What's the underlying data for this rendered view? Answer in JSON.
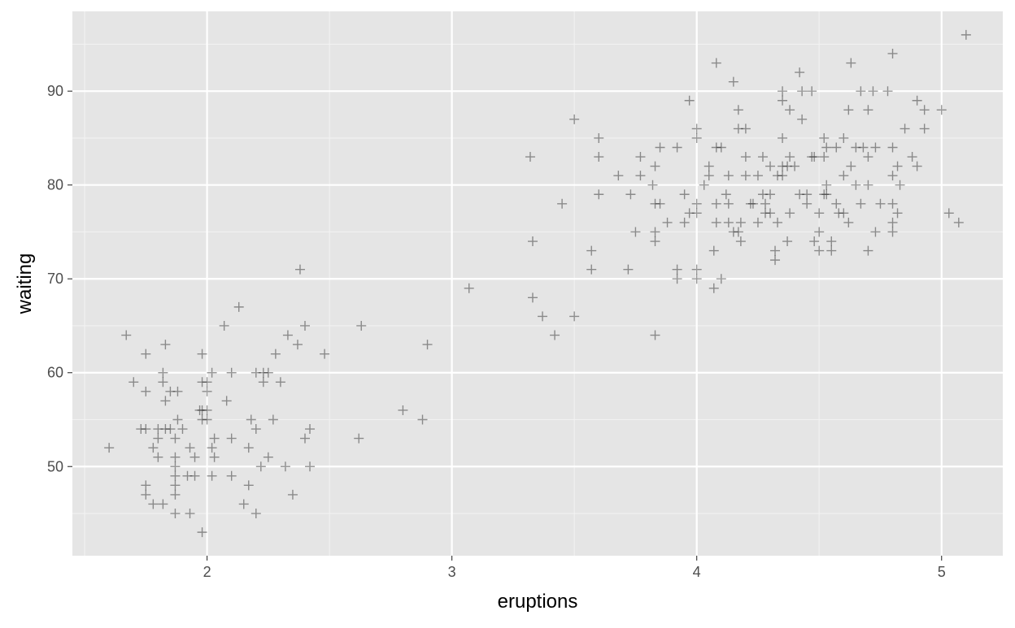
{
  "chart_data": {
    "type": "scatter",
    "title": "",
    "xlabel": "eruptions",
    "ylabel": "waiting",
    "xlim": [
      1.45,
      5.25
    ],
    "ylim": [
      40.5,
      98.5
    ],
    "x_ticks": [
      2,
      3,
      4,
      5
    ],
    "y_ticks": [
      50,
      60,
      70,
      80,
      90
    ],
    "x_tick_labels": [
      "2",
      "3",
      "4",
      "5"
    ],
    "y_tick_labels": [
      "50",
      "60",
      "70",
      "80",
      "90"
    ],
    "grid": true,
    "background": "#E5E5E5",
    "grid_major_color": "#FFFFFF",
    "grid_minor_color": "#F2F2F2",
    "marker": "plus",
    "marker_color": "#000000",
    "marker_alpha": 0.4,
    "points": [
      [
        1.6,
        52
      ],
      [
        1.67,
        64
      ],
      [
        1.7,
        59
      ],
      [
        1.73,
        54
      ],
      [
        1.75,
        54
      ],
      [
        1.75,
        62
      ],
      [
        1.75,
        58
      ],
      [
        1.75,
        48
      ],
      [
        1.75,
        47
      ],
      [
        1.78,
        52
      ],
      [
        1.78,
        46
      ],
      [
        1.8,
        51
      ],
      [
        1.8,
        53
      ],
      [
        1.8,
        54
      ],
      [
        1.82,
        60
      ],
      [
        1.82,
        59
      ],
      [
        1.82,
        46
      ],
      [
        1.83,
        54
      ],
      [
        1.83,
        63
      ],
      [
        1.83,
        57
      ],
      [
        1.85,
        58
      ],
      [
        1.85,
        54
      ],
      [
        1.87,
        47
      ],
      [
        1.87,
        45
      ],
      [
        1.87,
        50
      ],
      [
        1.87,
        49
      ],
      [
        1.87,
        48
      ],
      [
        1.87,
        51
      ],
      [
        1.87,
        53
      ],
      [
        1.88,
        58
      ],
      [
        1.88,
        55
      ],
      [
        1.9,
        54
      ],
      [
        1.92,
        49
      ],
      [
        1.93,
        45
      ],
      [
        1.93,
        52
      ],
      [
        1.95,
        49
      ],
      [
        1.95,
        51
      ],
      [
        1.97,
        56
      ],
      [
        1.98,
        55
      ],
      [
        1.98,
        62
      ],
      [
        1.98,
        59
      ],
      [
        1.98,
        56
      ],
      [
        1.98,
        43
      ],
      [
        2.0,
        56
      ],
      [
        2.0,
        59
      ],
      [
        2.0,
        55
      ],
      [
        2.0,
        58
      ],
      [
        2.02,
        60
      ],
      [
        2.02,
        49
      ],
      [
        2.02,
        52
      ],
      [
        2.03,
        51
      ],
      [
        2.03,
        53
      ],
      [
        2.07,
        65
      ],
      [
        2.08,
        57
      ],
      [
        2.1,
        49
      ],
      [
        2.1,
        60
      ],
      [
        2.1,
        53
      ],
      [
        2.13,
        67
      ],
      [
        2.15,
        46
      ],
      [
        2.17,
        48
      ],
      [
        2.17,
        52
      ],
      [
        2.18,
        55
      ],
      [
        2.2,
        54
      ],
      [
        2.2,
        60
      ],
      [
        2.2,
        45
      ],
      [
        2.22,
        50
      ],
      [
        2.23,
        59
      ],
      [
        2.23,
        60
      ],
      [
        2.25,
        60
      ],
      [
        2.25,
        51
      ],
      [
        2.27,
        55
      ],
      [
        2.28,
        62
      ],
      [
        2.3,
        59
      ],
      [
        2.32,
        50
      ],
      [
        2.33,
        64
      ],
      [
        2.35,
        47
      ],
      [
        2.37,
        63
      ],
      [
        2.38,
        71
      ],
      [
        2.4,
        65
      ],
      [
        2.4,
        53
      ],
      [
        2.42,
        50
      ],
      [
        2.42,
        54
      ],
      [
        2.48,
        62
      ],
      [
        2.62,
        53
      ],
      [
        2.63,
        65
      ],
      [
        2.8,
        56
      ],
      [
        2.88,
        55
      ],
      [
        2.9,
        63
      ],
      [
        3.07,
        69
      ],
      [
        3.32,
        83
      ],
      [
        3.33,
        68
      ],
      [
        3.33,
        74
      ],
      [
        3.37,
        66
      ],
      [
        3.42,
        64
      ],
      [
        3.45,
        78
      ],
      [
        3.5,
        87
      ],
      [
        3.5,
        66
      ],
      [
        3.57,
        73
      ],
      [
        3.57,
        71
      ],
      [
        3.6,
        83
      ],
      [
        3.6,
        85
      ],
      [
        3.6,
        79
      ],
      [
        3.68,
        81
      ],
      [
        3.72,
        71
      ],
      [
        3.73,
        79
      ],
      [
        3.75,
        75
      ],
      [
        3.77,
        83
      ],
      [
        3.77,
        81
      ],
      [
        3.82,
        80
      ],
      [
        3.83,
        74
      ],
      [
        3.83,
        75
      ],
      [
        3.83,
        82
      ],
      [
        3.83,
        64
      ],
      [
        3.83,
        78
      ],
      [
        3.85,
        84
      ],
      [
        3.85,
        78
      ],
      [
        3.88,
        76
      ],
      [
        3.92,
        84
      ],
      [
        3.92,
        71
      ],
      [
        3.92,
        70
      ],
      [
        3.95,
        79
      ],
      [
        3.95,
        76
      ],
      [
        3.97,
        89
      ],
      [
        3.97,
        77
      ],
      [
        4.0,
        86
      ],
      [
        4.0,
        85
      ],
      [
        4.0,
        77
      ],
      [
        4.0,
        71
      ],
      [
        4.0,
        78
      ],
      [
        4.0,
        70
      ],
      [
        4.03,
        80
      ],
      [
        4.05,
        82
      ],
      [
        4.05,
        81
      ],
      [
        4.07,
        73
      ],
      [
        4.07,
        69
      ],
      [
        4.08,
        84
      ],
      [
        4.08,
        93
      ],
      [
        4.08,
        78
      ],
      [
        4.08,
        76
      ],
      [
        4.1,
        70
      ],
      [
        4.1,
        84
      ],
      [
        4.12,
        79
      ],
      [
        4.13,
        81
      ],
      [
        4.13,
        76
      ],
      [
        4.13,
        78
      ],
      [
        4.15,
        91
      ],
      [
        4.15,
        75
      ],
      [
        4.17,
        88
      ],
      [
        4.17,
        86
      ],
      [
        4.17,
        75
      ],
      [
        4.18,
        76
      ],
      [
        4.18,
        74
      ],
      [
        4.2,
        81
      ],
      [
        4.2,
        83
      ],
      [
        4.2,
        86
      ],
      [
        4.22,
        78
      ],
      [
        4.23,
        78
      ],
      [
        4.25,
        76
      ],
      [
        4.25,
        81
      ],
      [
        4.27,
        83
      ],
      [
        4.27,
        79
      ],
      [
        4.28,
        77
      ],
      [
        4.28,
        78
      ],
      [
        4.3,
        79
      ],
      [
        4.3,
        82
      ],
      [
        4.3,
        77
      ],
      [
        4.32,
        73
      ],
      [
        4.32,
        72
      ],
      [
        4.33,
        81
      ],
      [
        4.33,
        76
      ],
      [
        4.35,
        89
      ],
      [
        4.35,
        90
      ],
      [
        4.35,
        85
      ],
      [
        4.35,
        82
      ],
      [
        4.35,
        81
      ],
      [
        4.37,
        74
      ],
      [
        4.37,
        82
      ],
      [
        4.38,
        83
      ],
      [
        4.38,
        88
      ],
      [
        4.38,
        77
      ],
      [
        4.4,
        82
      ],
      [
        4.42,
        92
      ],
      [
        4.42,
        79
      ],
      [
        4.43,
        87
      ],
      [
        4.43,
        90
      ],
      [
        4.45,
        79
      ],
      [
        4.45,
        78
      ],
      [
        4.47,
        83
      ],
      [
        4.47,
        90
      ],
      [
        4.48,
        83
      ],
      [
        4.48,
        74
      ],
      [
        4.5,
        77
      ],
      [
        4.5,
        75
      ],
      [
        4.5,
        73
      ],
      [
        4.52,
        85
      ],
      [
        4.52,
        83
      ],
      [
        4.52,
        79
      ],
      [
        4.53,
        79
      ],
      [
        4.53,
        84
      ],
      [
        4.53,
        80
      ],
      [
        4.55,
        73
      ],
      [
        4.55,
        74
      ],
      [
        4.57,
        84
      ],
      [
        4.57,
        78
      ],
      [
        4.58,
        77
      ],
      [
        4.6,
        85
      ],
      [
        4.6,
        81
      ],
      [
        4.6,
        77
      ],
      [
        4.62,
        88
      ],
      [
        4.62,
        76
      ],
      [
        4.63,
        93
      ],
      [
        4.63,
        82
      ],
      [
        4.65,
        84
      ],
      [
        4.65,
        80
      ],
      [
        4.67,
        90
      ],
      [
        4.67,
        78
      ],
      [
        4.68,
        84
      ],
      [
        4.7,
        83
      ],
      [
        4.7,
        73
      ],
      [
        4.7,
        80
      ],
      [
        4.7,
        88
      ],
      [
        4.72,
        90
      ],
      [
        4.73,
        75
      ],
      [
        4.73,
        84
      ],
      [
        4.75,
        78
      ],
      [
        4.78,
        90
      ],
      [
        4.8,
        84
      ],
      [
        4.8,
        94
      ],
      [
        4.8,
        78
      ],
      [
        4.8,
        81
      ],
      [
        4.8,
        76
      ],
      [
        4.8,
        75
      ],
      [
        4.82,
        82
      ],
      [
        4.82,
        77
      ],
      [
        4.83,
        80
      ],
      [
        4.85,
        86
      ],
      [
        4.88,
        83
      ],
      [
        4.9,
        82
      ],
      [
        4.9,
        89
      ],
      [
        4.93,
        86
      ],
      [
        4.93,
        88
      ],
      [
        5.0,
        88
      ],
      [
        5.03,
        77
      ],
      [
        5.07,
        76
      ],
      [
        5.1,
        96
      ]
    ]
  }
}
